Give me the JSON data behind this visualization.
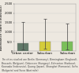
{
  "categories": [
    "Urban center",
    "Suburban",
    "Suburban"
  ],
  "bar_values": [
    420,
    520,
    490
  ],
  "err_up": [
    1550,
    1700,
    1450
  ],
  "err_down": [
    80,
    120,
    100
  ],
  "bar_colors": [
    "#607868",
    "#d4cc3a",
    "#7abf5a"
  ],
  "ylim": [
    0,
    2500
  ],
  "yticks": [
    0,
    500,
    1000,
    1500,
    2000,
    2500
  ],
  "ytick_labels": [
    "0",
    "500",
    "1,000",
    "1,500",
    "2,000",
    "2,500"
  ],
  "ylabel": "Abondance (Nbre d'individus)",
  "background_color": "#ede8e0",
  "footnote_lines": [
    "Ten cities studied are Berlin (Germany), Birmingham (England),",
    "Brussels (Belgium), Debrecen (Hungary), Edmonton (Harbour),",
    "Kannada (Indonesia), Quang (Japan), Shanghai (Romania), Sofia",
    "(Bulgaria) and Suva (Australia)"
  ],
  "footnote_fontsize": 2.2,
  "bar_width": 0.5,
  "figsize": [
    1.0,
    0.93
  ],
  "dpi": 100,
  "title_fontsize": 3.5,
  "ylabel_fontsize": 2.8,
  "xtick_fontsize": 3.0,
  "ytick_fontsize": 2.5
}
